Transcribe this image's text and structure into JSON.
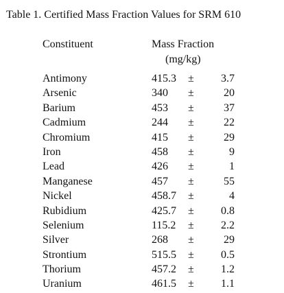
{
  "table": {
    "title": "Table 1.  Certified Mass Fraction Values for SRM 610",
    "header_constituent": "Constituent",
    "header_mass_fraction": "Mass Fraction",
    "header_unit": "(mg/kg)",
    "rows": [
      {
        "name": "Antimony",
        "value": "415.3",
        "pm": "±",
        "unc": "3.7"
      },
      {
        "name": "Arsenic",
        "value": "340",
        "pm": "±",
        "unc": "20"
      },
      {
        "name": "Barium",
        "value": "453",
        "pm": "±",
        "unc": "37"
      },
      {
        "name": "Cadmium",
        "value": "244",
        "pm": "±",
        "unc": "22"
      },
      {
        "name": "Chromium",
        "value": "415",
        "pm": "±",
        "unc": "29"
      },
      {
        "name": "Iron",
        "value": "458",
        "pm": "±",
        "unc": "9"
      },
      {
        "name": "Lead",
        "value": "426",
        "pm": "±",
        "unc": "1"
      },
      {
        "name": "Manganese",
        "value": "457",
        "pm": "±",
        "unc": "55"
      },
      {
        "name": "Nickel",
        "value": "458.7",
        "pm": "±",
        "unc": "4"
      },
      {
        "name": "Rubidium",
        "value": "425.7",
        "pm": "±",
        "unc": "0.8"
      },
      {
        "name": "Selenium",
        "value": "115.2",
        "pm": "±",
        "unc": "2.2"
      },
      {
        "name": "Silver",
        "value": "268",
        "pm": "±",
        "unc": "29"
      },
      {
        "name": "Strontium",
        "value": "515.5",
        "pm": "±",
        "unc": "0.5"
      },
      {
        "name": "Thorium",
        "value": "457.2",
        "pm": "±",
        "unc": "1.2"
      },
      {
        "name": "Uranium",
        "value": "461.5",
        "pm": "±",
        "unc": "1.1"
      }
    ]
  }
}
